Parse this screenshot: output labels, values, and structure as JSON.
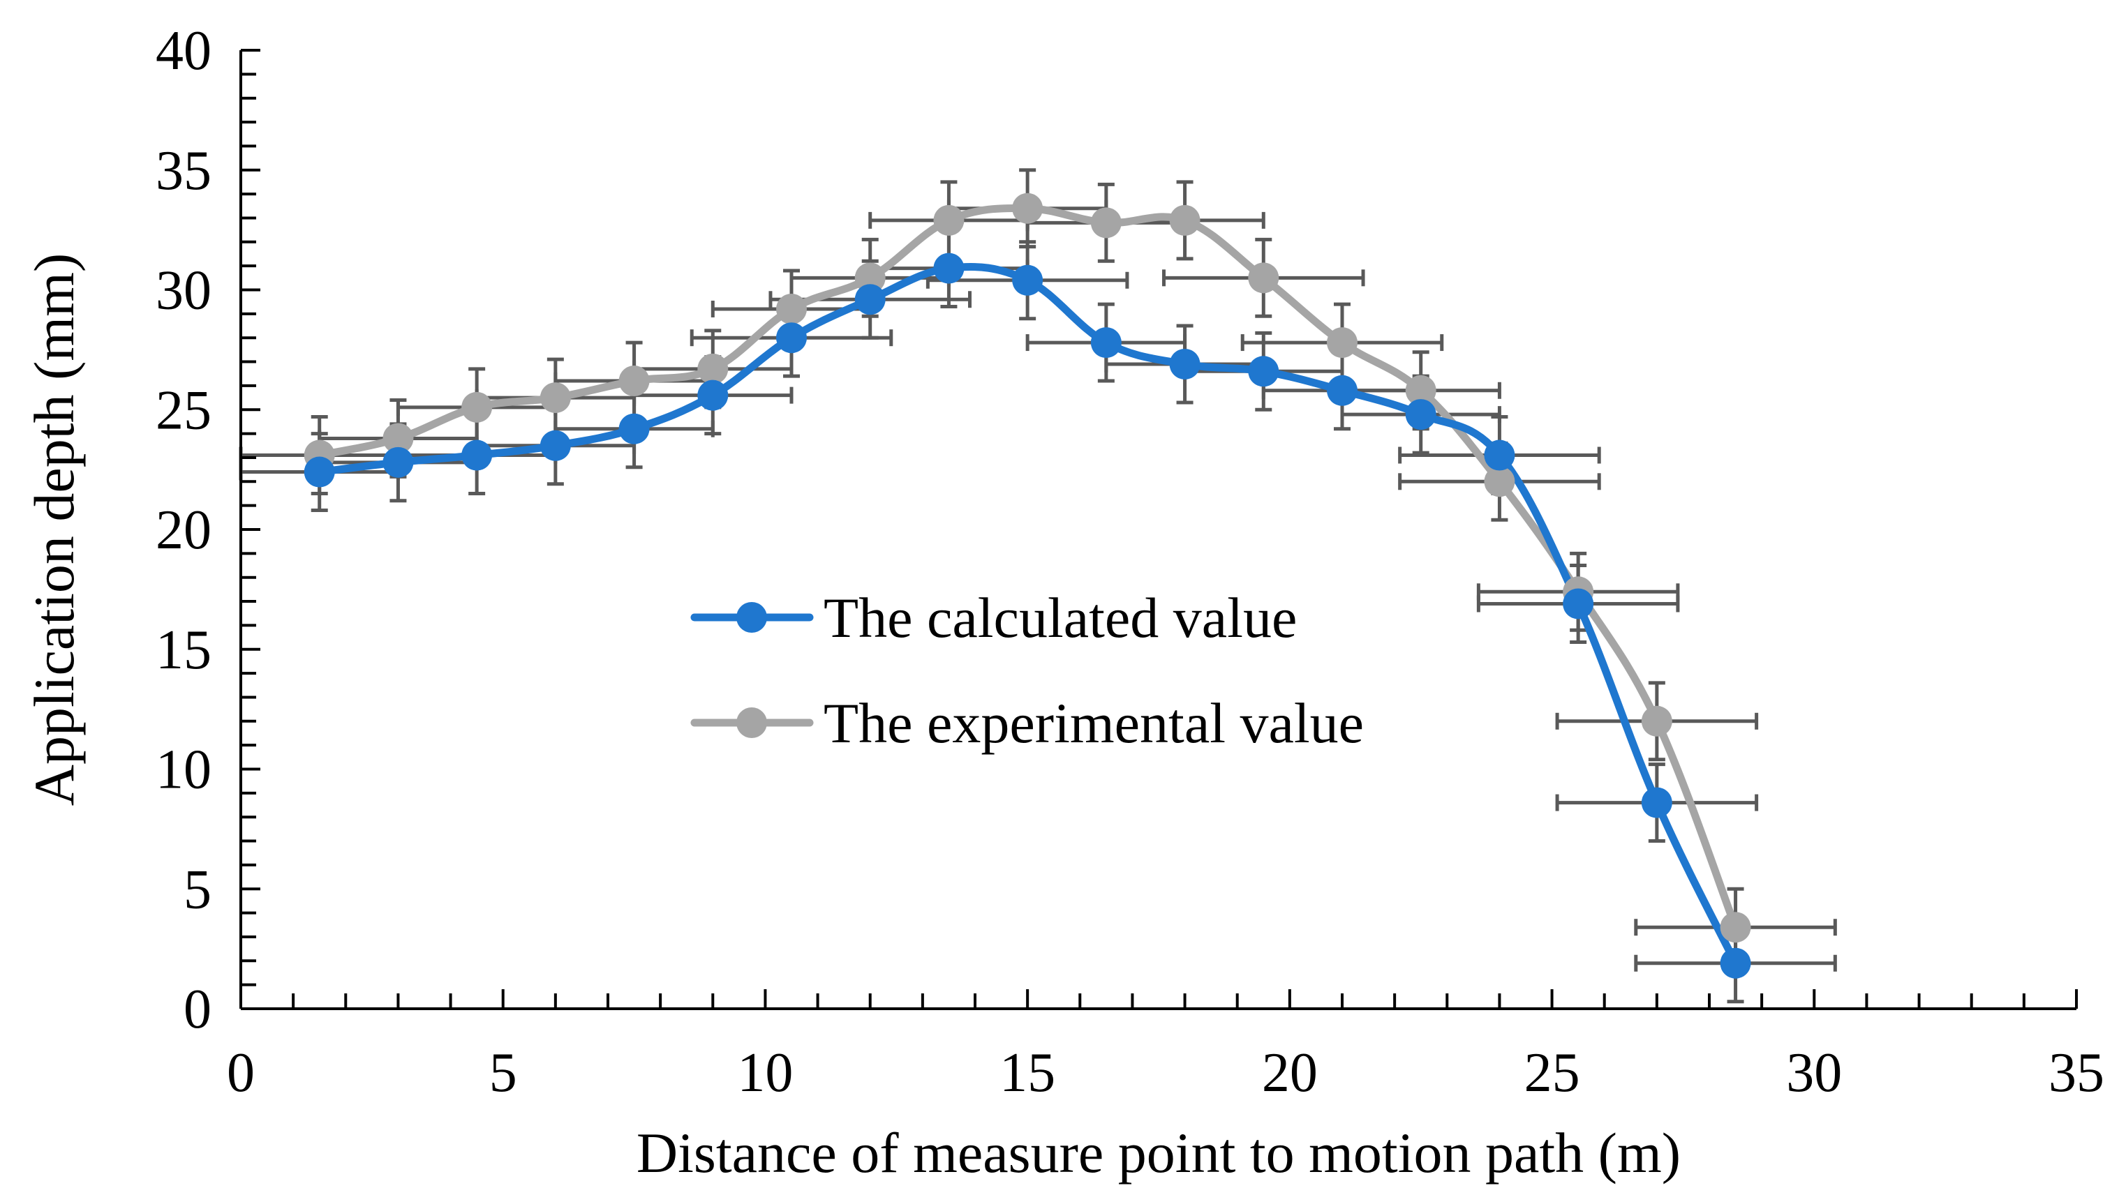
{
  "chart_data": {
    "type": "line",
    "title": "",
    "xlabel": "Distance of measure point to motion path (m)",
    "ylabel": "Application depth (mm)",
    "xlim": [
      0,
      35
    ],
    "ylim": [
      0,
      40
    ],
    "xticks": [
      0,
      5,
      10,
      15,
      20,
      25,
      30,
      35
    ],
    "yticks": [
      0,
      5,
      10,
      15,
      20,
      25,
      30,
      35,
      40
    ],
    "x_minor_step": 1,
    "y_minor_step": 1,
    "grid": false,
    "legend_position": "center",
    "series": [
      {
        "name": "The calculated value",
        "color": "#1f77cf",
        "marker": "circle",
        "x": [
          1.5,
          3,
          4.5,
          6,
          7.5,
          9,
          10.5,
          12,
          13.5,
          15,
          16.5,
          18,
          19.5,
          21,
          22.5,
          24,
          25.5,
          27,
          28.5
        ],
        "values": [
          22.4,
          22.8,
          23.1,
          23.5,
          24.2,
          25.6,
          28.0,
          29.6,
          30.9,
          30.4,
          27.8,
          26.9,
          26.6,
          25.8,
          24.8,
          23.1,
          16.9,
          8.6,
          1.9
        ],
        "x_error": [
          1.5,
          1.5,
          1.5,
          1.5,
          1.5,
          1.5,
          1.9,
          1.9,
          1.5,
          1.9,
          1.5,
          1.5,
          1.5,
          1.5,
          1.5,
          1.9,
          1.9,
          1.9,
          1.9
        ],
        "y_error": [
          1.6,
          1.6,
          1.6,
          1.6,
          1.6,
          1.6,
          1.6,
          1.6,
          1.6,
          1.6,
          1.6,
          1.6,
          1.6,
          1.6,
          1.6,
          1.6,
          1.6,
          1.6,
          1.6
        ]
      },
      {
        "name": "The experimental value",
        "color": "#a5a5a5",
        "marker": "circle",
        "x": [
          1.5,
          3,
          4.5,
          6,
          7.5,
          9,
          10.5,
          12,
          13.5,
          15,
          16.5,
          18,
          19.5,
          21,
          22.5,
          24,
          25.5,
          27,
          28.5
        ],
        "values": [
          23.1,
          23.8,
          25.1,
          25.5,
          26.2,
          26.7,
          29.2,
          30.5,
          32.9,
          33.4,
          32.8,
          32.9,
          30.5,
          27.8,
          25.8,
          22.0,
          17.4,
          12.0,
          3.4
        ],
        "x_error": [
          1.5,
          1.5,
          1.5,
          1.5,
          1.5,
          1.5,
          1.5,
          1.5,
          1.5,
          1.5,
          1.5,
          1.5,
          1.9,
          1.9,
          1.5,
          1.9,
          1.9,
          1.9,
          1.9
        ],
        "y_error": [
          1.6,
          1.6,
          1.6,
          1.6,
          1.6,
          1.6,
          1.6,
          1.6,
          1.6,
          1.6,
          1.6,
          1.6,
          1.6,
          1.6,
          1.6,
          1.6,
          1.6,
          1.6,
          1.6
        ]
      }
    ]
  }
}
